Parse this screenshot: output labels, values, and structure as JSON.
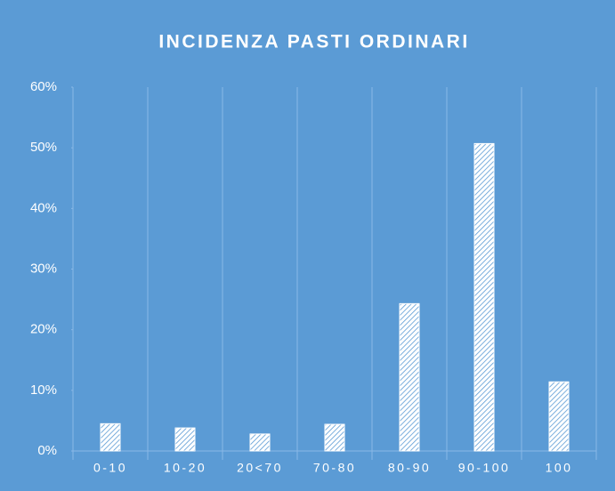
{
  "chart_data": {
    "type": "bar",
    "title": "INCIDENZA PASTI ORDINARI",
    "categories": [
      "0-10",
      "10-20",
      "20<70",
      "70-80",
      "80-90",
      "90-100",
      "100"
    ],
    "values": [
      4.5,
      3.8,
      2.8,
      4.4,
      24.3,
      50.7,
      11.4
    ],
    "color": "#ffffff",
    "ylim": [
      0,
      60
    ],
    "yticks": [
      {
        "value": 0,
        "label": "0%"
      },
      {
        "value": 10,
        "label": "10%"
      },
      {
        "value": 20,
        "label": "20%"
      },
      {
        "value": 30,
        "label": "30%"
      },
      {
        "value": 40,
        "label": "40%"
      },
      {
        "value": 50,
        "label": "50%"
      },
      {
        "value": 60,
        "label": "60%"
      }
    ],
    "grid": true
  }
}
